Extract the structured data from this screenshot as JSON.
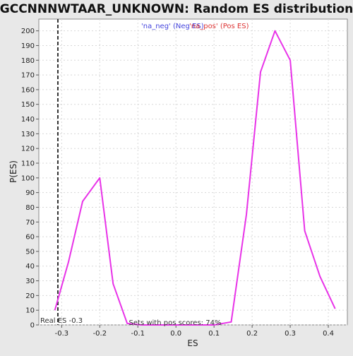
{
  "chart_data": {
    "type": "line",
    "title": "GCCNNNWTAAR_UNKNOWN: Random ES distribution",
    "xlabel": "ES",
    "ylabel": "P(ES)",
    "xlim": [
      -0.36,
      0.45
    ],
    "ylim": [
      0,
      208
    ],
    "x_ticks": [
      -0.3,
      -0.2,
      -0.1,
      0.0,
      0.1,
      0.2,
      0.3,
      0.4
    ],
    "x_tick_labels": [
      "-0.3",
      "-0.2",
      "-0.1",
      "0.0",
      "0.1",
      "0.2",
      "0.3",
      "0.4"
    ],
    "y_ticks": [
      0,
      10,
      20,
      30,
      40,
      50,
      60,
      70,
      80,
      90,
      100,
      110,
      120,
      130,
      140,
      150,
      160,
      170,
      180,
      190,
      200
    ],
    "grid": true,
    "legend": [
      {
        "label": "'na_neg' (Neg ES)",
        "color": "#4444dd"
      },
      {
        "label": "'na_pos' (Pos ES)",
        "color": "#dd3333"
      }
    ],
    "series": [
      {
        "color": "#e833e8",
        "x": [
          -0.318,
          -0.282,
          -0.245,
          -0.2,
          -0.165,
          -0.128,
          -0.09,
          -0.05,
          0.0,
          0.05,
          0.1,
          0.145,
          0.185,
          0.222,
          0.26,
          0.3,
          0.338,
          0.378,
          0.418
        ],
        "y": [
          10,
          43,
          84,
          100,
          28,
          1,
          0,
          0,
          0,
          0,
          0,
          2,
          75,
          172,
          200,
          180,
          64,
          33,
          11
        ]
      }
    ],
    "real_es": {
      "value": -0.31,
      "label": "Real ES -0.3"
    },
    "annotation": "Sets with pos scores: 74%"
  }
}
